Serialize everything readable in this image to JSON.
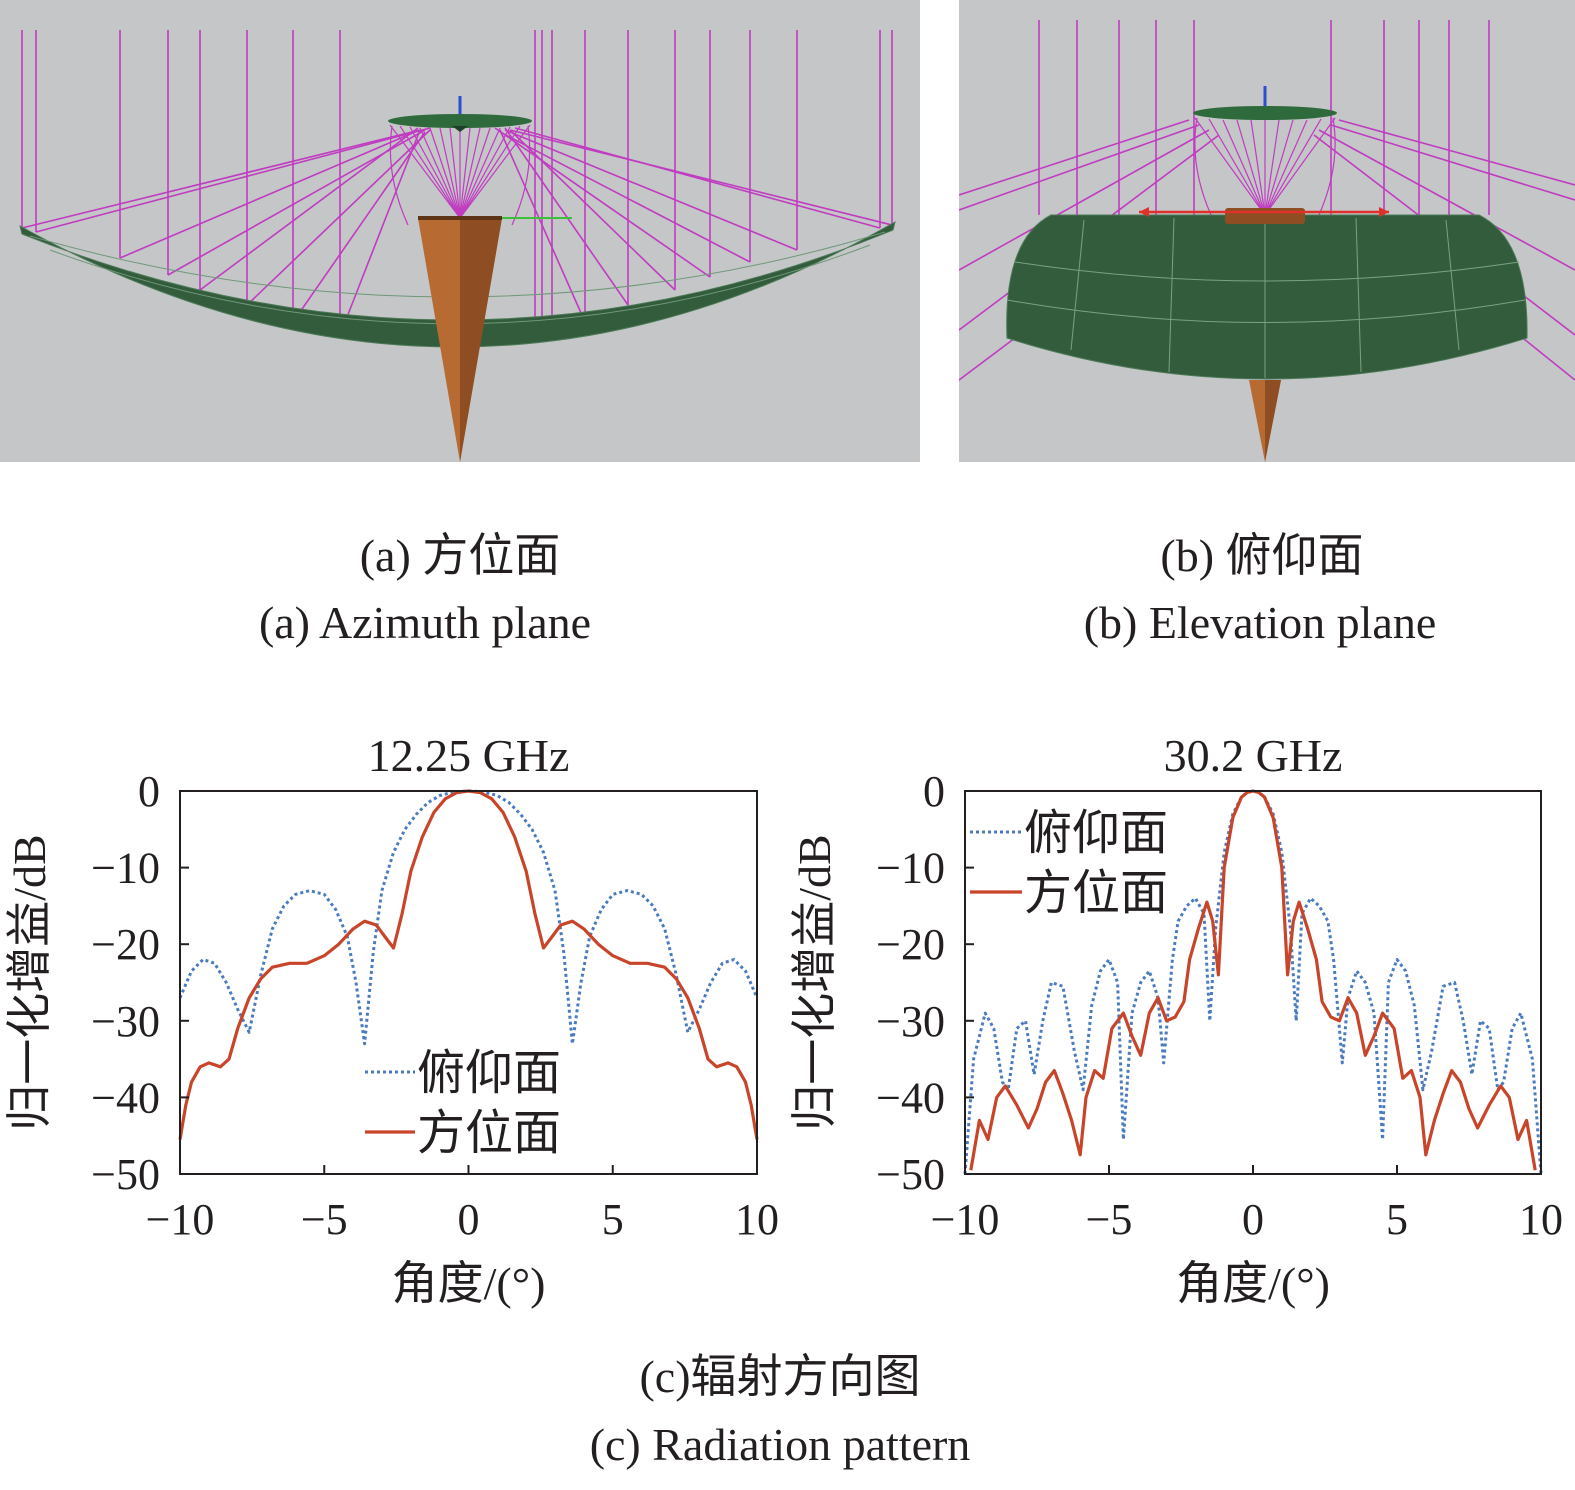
{
  "captions": {
    "a_cn": "(a) 方位面",
    "a_en": "(a) Azimuth plane",
    "b_cn": "(b) 俯仰面",
    "b_en": "(b) Elevation plane",
    "c_cn": "(c)辐射方向图",
    "c_en": "(c) Radiation pattern"
  },
  "colors": {
    "elevation": "#4a7bbf",
    "azimuth": "#c8452a",
    "reflector": "#335c3d",
    "rays": "#c03cc0",
    "feed": "#b86a33",
    "background": "#c4c6c8"
  },
  "chart_data": [
    {
      "type": "line",
      "title": "12.25 GHz",
      "xlabel": "角度/(°)",
      "ylabel": "归一化增益/dB",
      "xlim": [
        -10,
        10
      ],
      "ylim": [
        -50,
        0
      ],
      "xticks": [
        -10,
        -5,
        0,
        5,
        10
      ],
      "yticks": [
        0,
        -10,
        -20,
        -30,
        -40,
        -50
      ],
      "xtick_labels": [
        "−10",
        "−5",
        "0",
        "5",
        "10"
      ],
      "ytick_labels": [
        "0",
        "−10",
        "−20",
        "−30",
        "−40",
        "−50"
      ],
      "legend_position": "bottom-center",
      "series": [
        {
          "name": "俯仰面",
          "style": "dotted",
          "color": "#4a7bbf",
          "x": [
            -10,
            -9.6,
            -9.2,
            -8.8,
            -8.4,
            -8.0,
            -7.6,
            -7.2,
            -6.8,
            -6.4,
            -6.0,
            -5.5,
            -5.0,
            -4.6,
            -4.2,
            -3.9,
            -3.6,
            -3.3,
            -3.0,
            -2.6,
            -2.2,
            -1.8,
            -1.4,
            -1.0,
            -0.6,
            -0.3,
            0,
            0.3,
            0.6,
            1.0,
            1.4,
            1.8,
            2.2,
            2.6,
            3.0,
            3.3,
            3.6,
            3.9,
            4.2,
            4.6,
            5.0,
            5.5,
            6.0,
            6.4,
            6.8,
            7.2,
            7.6,
            8.0,
            8.4,
            8.8,
            9.2,
            9.6,
            10
          ],
          "y": [
            -27,
            -23.5,
            -22,
            -22.5,
            -25,
            -28.5,
            -31.5,
            -24,
            -18,
            -15,
            -13.5,
            -13,
            -13.5,
            -15.5,
            -19,
            -25,
            -33,
            -21,
            -13,
            -8,
            -5,
            -3,
            -1.5,
            -0.6,
            -0.2,
            -0.05,
            0,
            -0.05,
            -0.2,
            -0.6,
            -1.5,
            -3,
            -5,
            -8,
            -13,
            -21,
            -33,
            -25,
            -19,
            -15.5,
            -13.5,
            -13,
            -13.5,
            -15,
            -18,
            -24,
            -31.5,
            -28.5,
            -25,
            -22.5,
            -22,
            -23.5,
            -27
          ]
        },
        {
          "name": "方位面",
          "style": "solid",
          "color": "#c8452a",
          "x": [
            -10,
            -9.8,
            -9.6,
            -9.3,
            -9.0,
            -8.6,
            -8.3,
            -8.0,
            -7.6,
            -7.2,
            -6.8,
            -6.2,
            -5.6,
            -5.0,
            -4.5,
            -4.0,
            -3.6,
            -3.2,
            -2.9,
            -2.6,
            -2.3,
            -2.0,
            -1.6,
            -1.2,
            -0.8,
            -0.4,
            0,
            0.4,
            0.8,
            1.2,
            1.6,
            2.0,
            2.3,
            2.6,
            2.9,
            3.2,
            3.6,
            4.0,
            4.5,
            5.0,
            5.6,
            6.2,
            6.8,
            7.2,
            7.6,
            8.0,
            8.3,
            8.6,
            9.0,
            9.3,
            9.6,
            9.8,
            10
          ],
          "y": [
            -45.5,
            -41,
            -38,
            -36,
            -35.5,
            -36,
            -35,
            -31,
            -27,
            -24.5,
            -23,
            -22.5,
            -22.5,
            -21.5,
            -20,
            -18,
            -17,
            -17.5,
            -19,
            -20.5,
            -16,
            -10.5,
            -6,
            -2.8,
            -1,
            -0.2,
            0,
            -0.2,
            -1,
            -2.8,
            -6,
            -10.5,
            -16,
            -20.5,
            -19,
            -17.5,
            -17,
            -18,
            -20,
            -21.5,
            -22.5,
            -22.5,
            -23,
            -24.5,
            -27,
            -31,
            -35,
            -36,
            -35.5,
            -36,
            -38,
            -41,
            -45.5
          ]
        }
      ]
    },
    {
      "type": "line",
      "title": "30.2 GHz",
      "xlabel": "角度/(°)",
      "ylabel": "归一化增益/dB",
      "xlim": [
        -10,
        10
      ],
      "ylim": [
        -50,
        0
      ],
      "xticks": [
        -10,
        -5,
        0,
        5,
        10
      ],
      "yticks": [
        0,
        -10,
        -20,
        -30,
        -40,
        -50
      ],
      "xtick_labels": [
        "−10",
        "−5",
        "0",
        "5",
        "10"
      ],
      "ytick_labels": [
        "0",
        "−10",
        "−20",
        "−30",
        "−40",
        "−50"
      ],
      "legend_position": "top-left",
      "series": [
        {
          "name": "俯仰面",
          "style": "dotted",
          "color": "#4a7bbf",
          "x": [
            -10,
            -9.7,
            -9.3,
            -9.0,
            -8.7,
            -8.5,
            -8.2,
            -7.9,
            -7.6,
            -7.3,
            -7.0,
            -6.6,
            -6.2,
            -5.9,
            -5.6,
            -5.3,
            -5.0,
            -4.7,
            -4.5,
            -4.2,
            -3.9,
            -3.6,
            -3.3,
            -3.1,
            -2.8,
            -2.6,
            -2.3,
            -2.0,
            -1.7,
            -1.5,
            -1.3,
            -1.0,
            -0.7,
            -0.4,
            -0.2,
            0,
            0.2,
            0.4,
            0.7,
            1.0,
            1.3,
            1.5,
            1.7,
            2.0,
            2.3,
            2.6,
            2.8,
            3.1,
            3.3,
            3.6,
            3.9,
            4.2,
            4.5,
            4.7,
            5.0,
            5.3,
            5.6,
            5.9,
            6.2,
            6.6,
            7.0,
            7.3,
            7.6,
            7.9,
            8.2,
            8.5,
            8.7,
            9.0,
            9.3,
            9.7,
            10
          ],
          "y": [
            -50,
            -35,
            -29,
            -31,
            -38,
            -39,
            -31,
            -30,
            -37,
            -30,
            -25,
            -25.5,
            -34,
            -39,
            -28,
            -23.5,
            -22,
            -25,
            -45.5,
            -29,
            -25,
            -23.5,
            -27,
            -35.5,
            -22,
            -17,
            -15,
            -14,
            -16,
            -30,
            -18,
            -8,
            -3,
            -0.8,
            -0.2,
            0,
            -0.2,
            -0.8,
            -3,
            -8,
            -18,
            -30,
            -16,
            -14,
            -15,
            -17,
            -22,
            -35.5,
            -27,
            -23.5,
            -25,
            -29,
            -45.5,
            -25,
            -22,
            -23.5,
            -28,
            -39,
            -34,
            -25.5,
            -25,
            -30,
            -37,
            -30,
            -31,
            -39,
            -38,
            -31,
            -29,
            -35,
            -50
          ]
        },
        {
          "name": "方位面",
          "style": "solid",
          "color": "#c8452a",
          "x": [
            -9.8,
            -9.5,
            -9.2,
            -8.9,
            -8.6,
            -8.2,
            -7.8,
            -7.5,
            -7.2,
            -6.9,
            -6.6,
            -6.3,
            -6.0,
            -5.8,
            -5.5,
            -5.2,
            -4.9,
            -4.5,
            -4.2,
            -3.9,
            -3.6,
            -3.3,
            -3.0,
            -2.7,
            -2.4,
            -2.2,
            -1.9,
            -1.6,
            -1.4,
            -1.2,
            -1.0,
            -0.7,
            -0.4,
            -0.2,
            0,
            0.2,
            0.4,
            0.7,
            1.0,
            1.2,
            1.4,
            1.6,
            1.9,
            2.2,
            2.4,
            2.7,
            3.0,
            3.3,
            3.6,
            3.9,
            4.2,
            4.5,
            4.9,
            5.2,
            5.5,
            5.8,
            6.0,
            6.3,
            6.6,
            6.9,
            7.2,
            7.5,
            7.8,
            8.2,
            8.6,
            8.9,
            9.2,
            9.5,
            9.8
          ],
          "y": [
            -49.5,
            -43,
            -45.5,
            -40,
            -38.5,
            -41,
            -44,
            -41.5,
            -38,
            -36.5,
            -39.5,
            -43,
            -47.5,
            -40,
            -36.5,
            -37.5,
            -31,
            -29,
            -32,
            -34.5,
            -29,
            -27,
            -30,
            -29.5,
            -27.5,
            -22,
            -18,
            -14.5,
            -17,
            -24,
            -10,
            -3.5,
            -0.8,
            -0.2,
            0,
            -0.2,
            -0.8,
            -3.5,
            -10,
            -24,
            -17,
            -14.5,
            -18,
            -22,
            -27.5,
            -29.5,
            -30,
            -27,
            -29,
            -34.5,
            -32,
            -29,
            -31,
            -37.5,
            -36.5,
            -40,
            -47.5,
            -43,
            -39.5,
            -36.5,
            -38,
            -41.5,
            -44,
            -41,
            -38.5,
            -40,
            -45.5,
            -43,
            -49.5
          ]
        }
      ]
    }
  ]
}
